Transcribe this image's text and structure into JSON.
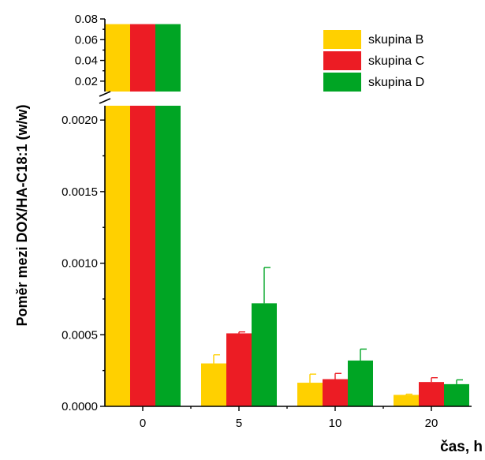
{
  "chart_data": {
    "type": "bar",
    "title": "",
    "xlabel": "čas, h",
    "ylabel": "Poměr mezi DOX/HA-C18:1 (w/w)",
    "categories": [
      "0",
      "5",
      "10",
      "20"
    ],
    "series": [
      {
        "name": "skupina B",
        "color": "#ffd000",
        "values": [
          0.075,
          0.0003,
          0.000165,
          8e-05
        ],
        "errors": [
          0,
          6e-05,
          6e-05,
          5e-06
        ]
      },
      {
        "name": "skupina C",
        "color": "#ec1c24",
        "values": [
          0.075,
          0.00051,
          0.00019,
          0.00017
        ],
        "errors": [
          0,
          1e-05,
          4e-05,
          3e-05
        ]
      },
      {
        "name": "skupina D",
        "color": "#00a524",
        "values": [
          0.075,
          0.00072,
          0.00032,
          0.000155
        ],
        "errors": [
          0,
          0.00025,
          8e-05,
          3e-05
        ]
      }
    ],
    "axis_break": true,
    "ylim_lower": [
      0,
      0.0021
    ],
    "ylim_upper": [
      0.01,
      0.08
    ],
    "yticks_lower": [
      "0.0000",
      "0.0005",
      "0.0010",
      "0.0015",
      "0.0020"
    ],
    "yticks_upper": [
      "0.02",
      "0.04",
      "0.06",
      "0.08"
    ],
    "legend_position": "top-right",
    "grid": false
  }
}
